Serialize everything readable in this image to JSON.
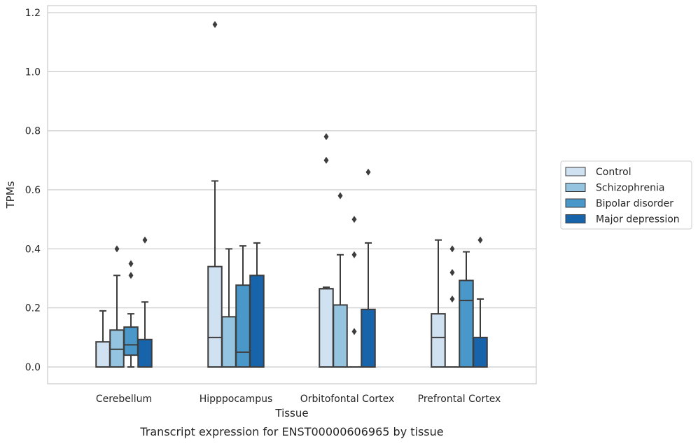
{
  "caption": "Transcript expression for ENST00000606965 by tissue",
  "chart_data": {
    "type": "box",
    "xlabel": "Tissue",
    "ylabel": "TPMs",
    "ylim": [
      -0.055,
      1.225
    ],
    "yticks": [
      "0.0",
      "0.2",
      "0.4",
      "0.6",
      "0.8",
      "1.0",
      "1.2"
    ],
    "categories": [
      "Cerebellum",
      "Hipppocampus",
      "Orbitofontal Cortex",
      "Prefrontal Cortex"
    ],
    "grid": "horizontal",
    "legend_position": "right",
    "series": [
      {
        "name": "Control",
        "color": "#d0e1f2",
        "boxes": [
          {
            "whislo": 0.0,
            "q1": 0.0,
            "med": 0.0,
            "q3": 0.085,
            "whishi": 0.19,
            "fliers": []
          },
          {
            "whislo": 0.0,
            "q1": 0.0,
            "med": 0.1,
            "q3": 0.34,
            "whishi": 0.63,
            "fliers": [
              1.16
            ]
          },
          {
            "whislo": 0.0,
            "q1": 0.0,
            "med": 0.265,
            "q3": 0.265,
            "whishi": 0.27,
            "fliers": [
              0.7,
              0.78
            ]
          },
          {
            "whislo": 0.0,
            "q1": 0.0,
            "med": 0.1,
            "q3": 0.18,
            "whishi": 0.43,
            "fliers": []
          }
        ]
      },
      {
        "name": "Schizophrenia",
        "color": "#94c4df",
        "boxes": [
          {
            "whislo": 0.0,
            "q1": 0.0,
            "med": 0.06,
            "q3": 0.125,
            "whishi": 0.31,
            "fliers": [
              0.4
            ]
          },
          {
            "whislo": 0.0,
            "q1": 0.0,
            "med": 0.0,
            "q3": 0.17,
            "whishi": 0.4,
            "fliers": []
          },
          {
            "whislo": 0.0,
            "q1": 0.0,
            "med": 0.0,
            "q3": 0.21,
            "whishi": 0.38,
            "fliers": [
              0.58
            ]
          },
          {
            "whislo": 0.0,
            "q1": 0.0,
            "med": 0.0,
            "q3": 0.0,
            "whishi": 0.0,
            "fliers": [
              0.23,
              0.32,
              0.4
            ]
          }
        ]
      },
      {
        "name": "Bipolar disorder",
        "color": "#4a98c9",
        "boxes": [
          {
            "whislo": 0.0,
            "q1": 0.04,
            "med": 0.075,
            "q3": 0.135,
            "whishi": 0.18,
            "fliers": [
              0.31,
              0.35
            ]
          },
          {
            "whislo": 0.0,
            "q1": 0.0,
            "med": 0.05,
            "q3": 0.277,
            "whishi": 0.41,
            "fliers": []
          },
          {
            "whislo": 0.0,
            "q1": 0.0,
            "med": 0.0,
            "q3": 0.0,
            "whishi": 0.0,
            "fliers": [
              0.12,
              0.38,
              0.5
            ]
          },
          {
            "whislo": 0.0,
            "q1": 0.0,
            "med": 0.225,
            "q3": 0.293,
            "whishi": 0.39,
            "fliers": []
          }
        ]
      },
      {
        "name": "Major depression",
        "color": "#1764ab",
        "boxes": [
          {
            "whislo": 0.0,
            "q1": 0.0,
            "med": 0.0,
            "q3": 0.093,
            "whishi": 0.22,
            "fliers": [
              0.43
            ]
          },
          {
            "whislo": 0.0,
            "q1": 0.0,
            "med": 0.0,
            "q3": 0.31,
            "whishi": 0.42,
            "fliers": []
          },
          {
            "whislo": 0.0,
            "q1": 0.0,
            "med": 0.0,
            "q3": 0.195,
            "whishi": 0.42,
            "fliers": [
              0.66
            ]
          },
          {
            "whislo": 0.0,
            "q1": 0.0,
            "med": 0.0,
            "q3": 0.1,
            "whishi": 0.23,
            "fliers": [
              0.43
            ]
          }
        ]
      }
    ]
  }
}
